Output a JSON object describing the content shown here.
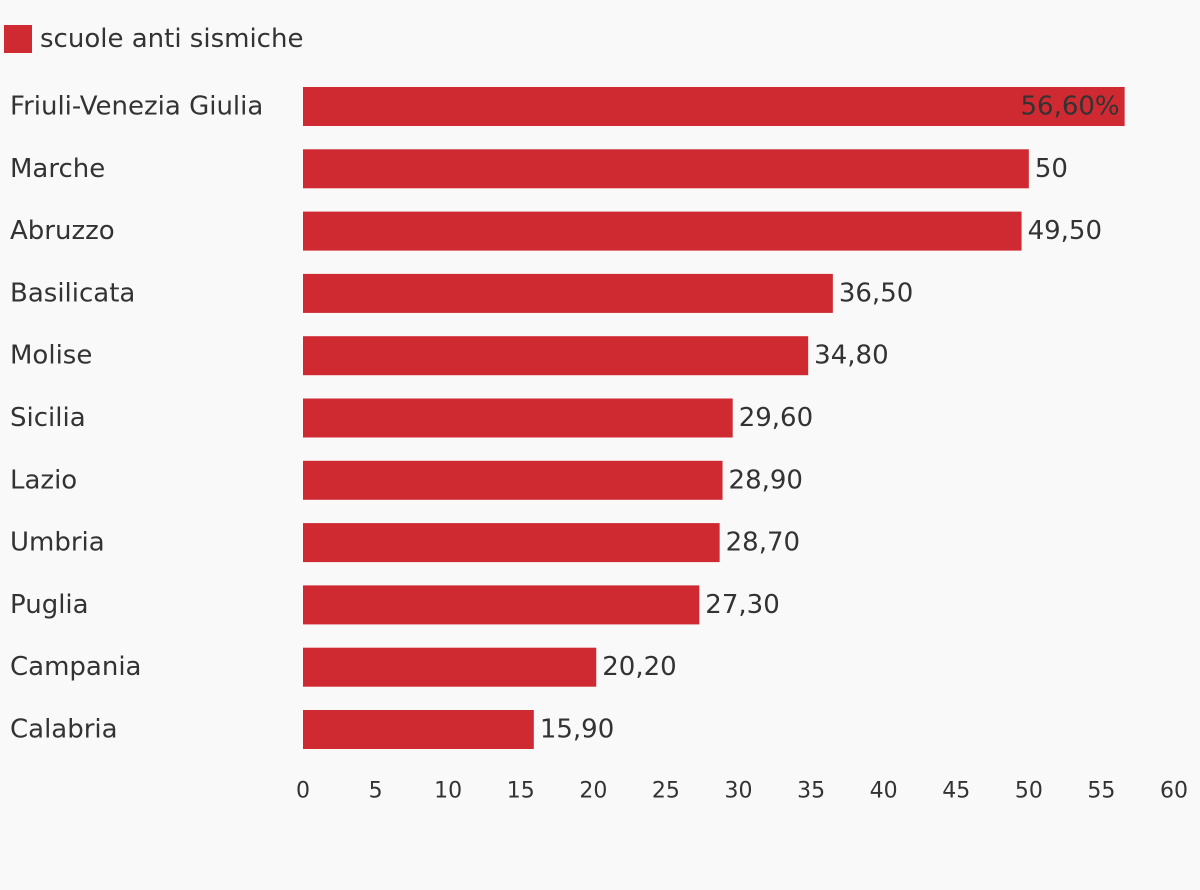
{
  "chart_data": {
    "type": "bar",
    "orientation": "horizontal",
    "legend_position": "top-left",
    "grid": false,
    "series": [
      {
        "name": "scuole anti sismiche",
        "color": "#cf2a31",
        "values": [
          56.6,
          50,
          49.5,
          36.5,
          34.8,
          29.6,
          28.9,
          28.7,
          27.3,
          20.2,
          15.9
        ],
        "value_labels": [
          "56,60%",
          "50",
          "49,50",
          "36,50",
          "34,80",
          "29,60",
          "28,90",
          "28,70",
          "27,30",
          "20,20",
          "15,90"
        ]
      }
    ],
    "categories": [
      "Friuli-Venezia Giulia",
      "Marche",
      "Abruzzo",
      "Basilicata",
      "Molise",
      "Sicilia",
      "Lazio",
      "Umbria",
      "Puglia",
      "Campania",
      "Calabria"
    ],
    "xlim": [
      0,
      60
    ],
    "xticks": [
      0,
      5,
      10,
      15,
      20,
      25,
      30,
      35,
      40,
      45,
      50,
      55,
      60
    ],
    "inside_label_color": "#333333",
    "text_color": "#333333"
  }
}
